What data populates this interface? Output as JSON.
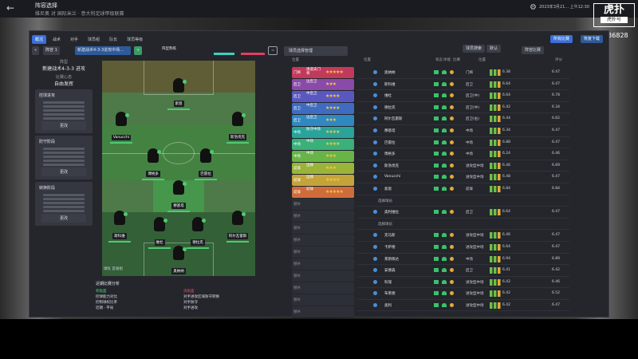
{
  "header": {
    "back_icon": "back-arrow-icon",
    "title": "阵容选择",
    "subtitle": "维尼奥 对 国际米兰 · 意大利足球甲级联赛",
    "datetime": "2023年3月21... 上午12:30",
    "watermark": "虎扑",
    "watermark_sub": "虎扑号",
    "watermark_id": "1636828"
  },
  "tabs": [
    "概况",
    "战术",
    "对手",
    "球员组",
    "队长",
    "球员等级"
  ],
  "toolbar": {
    "formation": "阵容 1",
    "tactic": "新建战术4-3-3进攻中场...",
    "shape_label": "阵型",
    "bar1_label": "阵型熟练",
    "bar2_label": "比赛熟练",
    "player_selector": "球员选择管理",
    "pause_label": "阵容安排",
    "search": "球员搜索",
    "filter": "默认",
    "reset": "临时比赛"
  },
  "right_header": {
    "btn1": "所有比赛",
    "btn2": "恢复下载",
    "btn3": "阵容比赛"
  },
  "left_panel": {
    "tactic_label": "阵型",
    "tactic_value": "新建战术4-3-3 进攻",
    "mentality_label": "比赛心态",
    "mentality_value": "自由发挥",
    "boxes": [
      {
        "head": "控球进攻",
        "lines": 5,
        "button": "更改"
      },
      {
        "head": "防守阶段",
        "lines": 5,
        "button": "更改"
      },
      {
        "head": "转换阶段",
        "lines": 5,
        "button": "更改"
      }
    ]
  },
  "pitch_players": [
    {
      "name": "索恩",
      "tier": "ST"
    },
    {
      "name": "Vanucchi",
      "tier": "LW"
    },
    {
      "name": "斯洛伐克",
      "tier": "RW"
    },
    {
      "name": "博格多",
      "tier": "CM"
    },
    {
      "name": "巴雷拉",
      "tier": "CM"
    },
    {
      "name": "穆基塔",
      "tier": "DM"
    },
    {
      "name": "斯科维",
      "tier": "LB"
    },
    {
      "name": "维杜",
      "tier": "CB"
    },
    {
      "name": "德拉克",
      "tier": "CB"
    },
    {
      "name": "阿尔瓦雷斯",
      "tier": "RB"
    },
    {
      "name": "奥纳纳",
      "tier": "GK"
    }
  ],
  "gk_label": "球队 首发组",
  "analysis": {
    "title": "近期比赛分析",
    "left_head": "积极面",
    "left": [
      "控球能力对比",
      "控制球权比率",
      "近期 · 平局"
    ],
    "right_head": "消极面",
    "right": [
      "对手进攻区域防守转换",
      "对手防守",
      "对手进攻"
    ]
  },
  "middle_header": "本场比赛风格",
  "column_headers": [
    "位置",
    "位置",
    "状态",
    "体能",
    "比赛",
    "位置",
    "评分"
  ],
  "roles": [
    {
      "key": "门将",
      "name": "清道夫门将",
      "stars": "★★★★★",
      "color": "#c23a5b"
    },
    {
      "key": "后卫",
      "name": "边后卫",
      "stars": "★★★",
      "color": "#8a4aa8"
    },
    {
      "key": "后卫",
      "name": "中后卫",
      "stars": "★★★★",
      "color": "#5a58c0"
    },
    {
      "key": "后卫",
      "name": "中后卫",
      "stars": "★★★★",
      "color": "#3f6cc0"
    },
    {
      "key": "后卫",
      "name": "边后卫",
      "stars": "★★★",
      "color": "#2f88c2"
    },
    {
      "key": "中场",
      "name": "防守中场",
      "stars": "★★★★",
      "color": "#2aa39a"
    },
    {
      "key": "中场",
      "name": "中场",
      "stars": "★★★★",
      "color": "#3ab07a"
    },
    {
      "key": "中场",
      "name": "中场",
      "stars": "★★★",
      "color": "#68b448"
    },
    {
      "key": "前锋",
      "name": "边锋",
      "stars": "★★★",
      "color": "#9ab43a"
    },
    {
      "key": "前锋",
      "name": "边锋",
      "stars": "★★★★",
      "color": "#c4a43a"
    },
    {
      "key": "前锋",
      "name": "前锋",
      "stars": "★★★★★",
      "color": "#d06c3a"
    },
    {
      "key": "替补",
      "name": "",
      "stars": "",
      "color": ""
    },
    {
      "key": "替补",
      "name": "",
      "stars": "",
      "color": ""
    },
    {
      "key": "替补",
      "name": "",
      "stars": "",
      "color": ""
    },
    {
      "key": "替补",
      "name": "",
      "stars": "",
      "color": ""
    },
    {
      "key": "替补",
      "name": "",
      "stars": "",
      "color": ""
    },
    {
      "key": "替补",
      "name": "",
      "stars": "",
      "color": ""
    },
    {
      "key": "替补",
      "name": "",
      "stars": "",
      "color": ""
    },
    {
      "key": "替补",
      "name": "",
      "stars": "",
      "color": ""
    },
    {
      "key": "替补",
      "name": "",
      "stars": "",
      "color": ""
    },
    {
      "key": "替补",
      "name": "",
      "stars": "",
      "color": ""
    }
  ],
  "table_rows": [
    {
      "name": "奥纳纳",
      "pos": "门将",
      "score1": "6.38",
      "score2": "6.47"
    },
    {
      "name": "斯科维",
      "pos": "后卫",
      "score1": "6.64",
      "score2": "6.47"
    },
    {
      "name": "维杜",
      "pos": "后卫(中)",
      "score1": "6.64",
      "score2": "6.78"
    },
    {
      "name": "德拉克",
      "pos": "后卫(中)",
      "score1": "6.42",
      "score2": "6.34"
    },
    {
      "name": "阿尔瓦雷斯",
      "pos": "后卫(右)",
      "score1": "6.44",
      "score2": "6.62"
    },
    {
      "name": "穆基塔",
      "pos": "中场",
      "score1": "6.34",
      "score2": "6.47"
    },
    {
      "name": "巴雷拉",
      "pos": "中场",
      "score1": "6.88",
      "score2": "6.47"
    },
    {
      "name": "博格多",
      "pos": "中场",
      "score1": "6.24",
      "score2": "6.46"
    },
    {
      "name": "斯洛伐克",
      "pos": "进攻型中场",
      "score1": "6.46",
      "score2": "6.69"
    },
    {
      "name": "Vanucchi",
      "pos": "进攻型中场",
      "score1": "6.48",
      "score2": "6.47"
    },
    {
      "name": "索恩",
      "pos": "前锋",
      "score1": "6.84",
      "score2": "6.84"
    },
    {
      "name": "选择球员",
      "pos": "",
      "score1": "",
      "score2": ""
    },
    {
      "name": "奥利维拉",
      "pos": "后卫",
      "score1": "6.64",
      "score2": "6.47"
    },
    {
      "name": "选择球员",
      "pos": "",
      "score1": "",
      "score2": ""
    },
    {
      "name": "克马斯",
      "pos": "进攻型中场",
      "score1": "6.46",
      "score2": "6.47"
    },
    {
      "name": "卡萨德",
      "pos": "进攻型中场",
      "score1": "6.64",
      "score2": "6.47"
    },
    {
      "name": "莱斯佩达",
      "pos": "中场",
      "score1": "6.94",
      "score2": "6.89"
    },
    {
      "name": "安德森",
      "pos": "后卫",
      "score1": "6.41",
      "score2": "6.42"
    },
    {
      "name": "科瑞",
      "pos": "进攻型中场",
      "score1": "6.42",
      "score2": "6.46"
    },
    {
      "name": "布莱德",
      "pos": "进攻型中场",
      "score1": "6.42",
      "score2": "6.52"
    },
    {
      "name": "奥利",
      "pos": "进攻型中场",
      "score1": "6.42",
      "score2": "6.47"
    }
  ]
}
